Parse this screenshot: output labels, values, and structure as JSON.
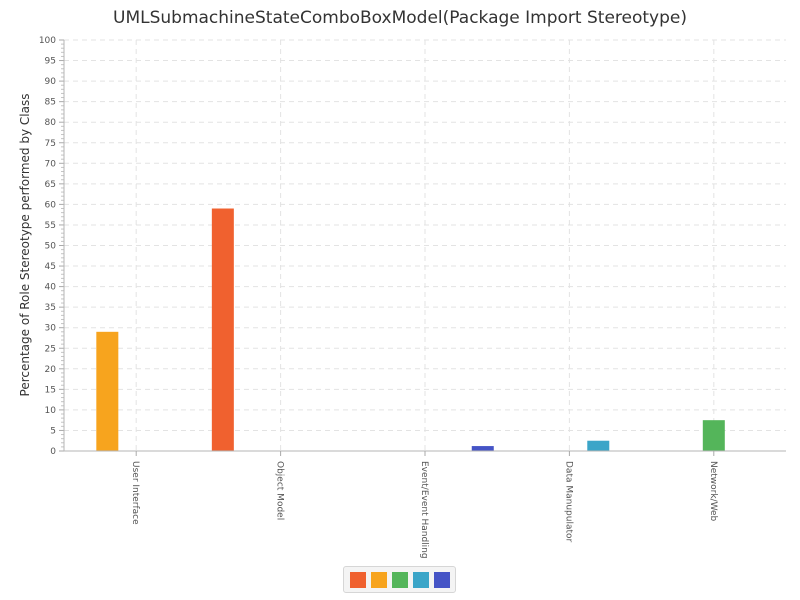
{
  "chart_data": {
    "type": "bar",
    "title": "UMLSubmachineStateComboBoxModel(Package Import Stereotype)",
    "xlabel": "",
    "ylabel": "Percentage of Role Stereotype performed by Class",
    "ylim": [
      0,
      100
    ],
    "ytick_step": 5,
    "grid": true,
    "legend_position": "bottom",
    "categories": [
      "User Interface",
      "Object Model",
      "Event/Event Handling",
      "Data Manupulator",
      "Network/Web"
    ],
    "series": [
      {
        "color": "#f0612f",
        "values": [
          0,
          59,
          0,
          0,
          0
        ]
      },
      {
        "color": "#f7a41e",
        "values": [
          29,
          0,
          0,
          0,
          0
        ]
      },
      {
        "color": "#54b55a",
        "values": [
          0,
          0,
          0,
          0,
          7.5
        ]
      },
      {
        "color": "#3ba5c8",
        "values": [
          0,
          0,
          0,
          2.5,
          0
        ]
      },
      {
        "color": "#4554c6",
        "values": [
          0,
          0,
          1.2,
          0,
          0
        ]
      }
    ]
  }
}
